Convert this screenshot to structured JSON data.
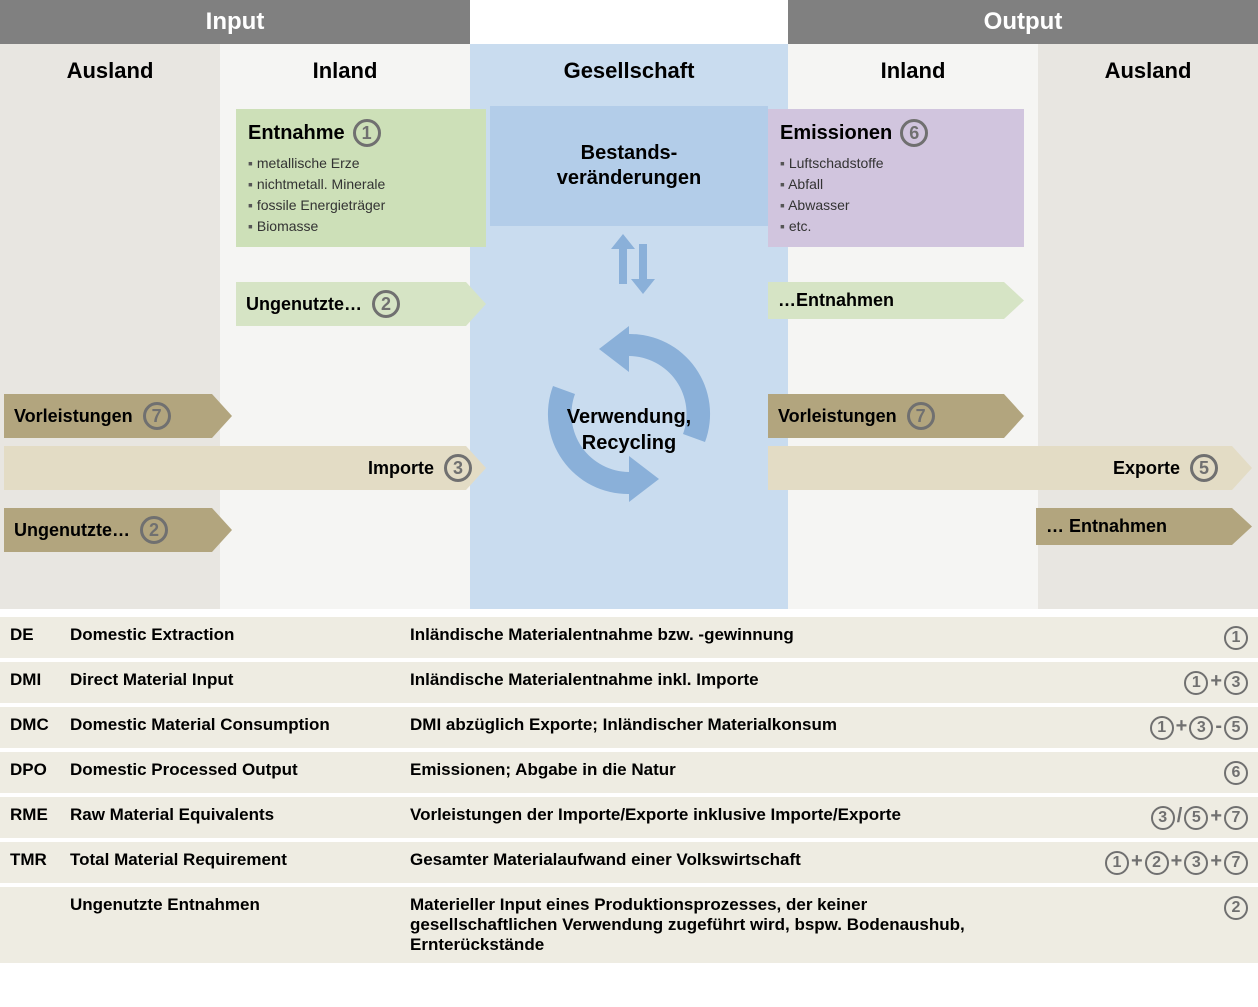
{
  "header": {
    "input": "Input",
    "output": "Output"
  },
  "sub": {
    "ausland": "Ausland",
    "inland": "Inland",
    "gesellschaft": "Gesellschaft"
  },
  "colors": {
    "header_grey": "#808080",
    "ausland_bg": "#e8e6e1",
    "inland_bg": "#f5f5f3",
    "gesellschaft_bg": "#c9dcef",
    "gesellschaft_box": "#b3cde9",
    "green": "#cde0b8",
    "green_light": "#d6e4c5",
    "purple": "#d1c5de",
    "tan": "#e3dcc5",
    "brown": "#b2a57e",
    "circle": "#707070",
    "arrow_blue": "#8ab0d9",
    "legend_bg": "#eeece2"
  },
  "entnahme": {
    "title": "Entnahme",
    "num": "1",
    "items": [
      "metallische Erze",
      "nichtmetall. Minerale",
      "fossile Energieträger",
      "Biomasse"
    ]
  },
  "emissionen": {
    "title": "Emissionen",
    "num": "6",
    "items": [
      "Luftschadstoffe",
      "Abfall",
      "Abwasser",
      "etc."
    ]
  },
  "chips": {
    "ungenutzte_in": {
      "label": "Ungenutzte…",
      "num": "2"
    },
    "ungenutzte_aus": {
      "label": "Ungenutzte…",
      "num": "2"
    },
    "entnahmen_in": {
      "label": "…Entnahmen"
    },
    "entnahmen_aus": {
      "label": "… Entnahmen"
    },
    "vorleist_in": {
      "label": "Vorleistungen",
      "num": "7"
    },
    "vorleist_out": {
      "label": "Vorleistungen",
      "num": "7"
    },
    "importe": {
      "label": "Importe",
      "num": "3"
    },
    "exporte": {
      "label": "Exporte",
      "num": "5"
    }
  },
  "gesellschaft": {
    "box": "Bestands-\nveränderungen",
    "center": "Verwendung,\nRecycling"
  },
  "legend": [
    {
      "abbr": "DE",
      "name": "Domestic Extraction",
      "desc": "Inländische Materialentnahme bzw. -gewinnung",
      "formula": [
        "1"
      ]
    },
    {
      "abbr": "DMI",
      "name": "Direct Material Input",
      "desc": "Inländische Materialentnahme inkl. Importe",
      "formula": [
        "1",
        "+",
        "3"
      ]
    },
    {
      "abbr": "DMC",
      "name": "Domestic Material Consumption",
      "desc": "DMI abzüglich Exporte; Inländischer Materialkonsum",
      "formula": [
        "1",
        "+",
        "3",
        "-",
        "5"
      ]
    },
    {
      "abbr": "DPO",
      "name": "Domestic Processed Output",
      "desc": "Emissionen; Abgabe in die Natur",
      "formula": [
        "6"
      ]
    },
    {
      "abbr": "RME",
      "name": "Raw Material Equivalents",
      "desc": "Vorleistungen der Importe/Exporte inklusive Importe/Exporte",
      "formula": [
        "3",
        "/",
        "5",
        "+",
        "7"
      ]
    },
    {
      "abbr": "TMR",
      "name": "Total Material Requirement",
      "desc": "Gesamter Materialaufwand einer Volkswirtschaft",
      "formula": [
        "1",
        "+",
        "2",
        "+",
        "3",
        "+",
        "7"
      ]
    },
    {
      "abbr": "",
      "name": "Ungenutzte Entnahmen",
      "desc": " Materieller Input eines Produktionsprozesses, der keiner gesellschaftlichen Verwendung zugeführt wird, bspw. Bodenaushub, Ernterückstände",
      "formula": [
        "2"
      ]
    }
  ]
}
